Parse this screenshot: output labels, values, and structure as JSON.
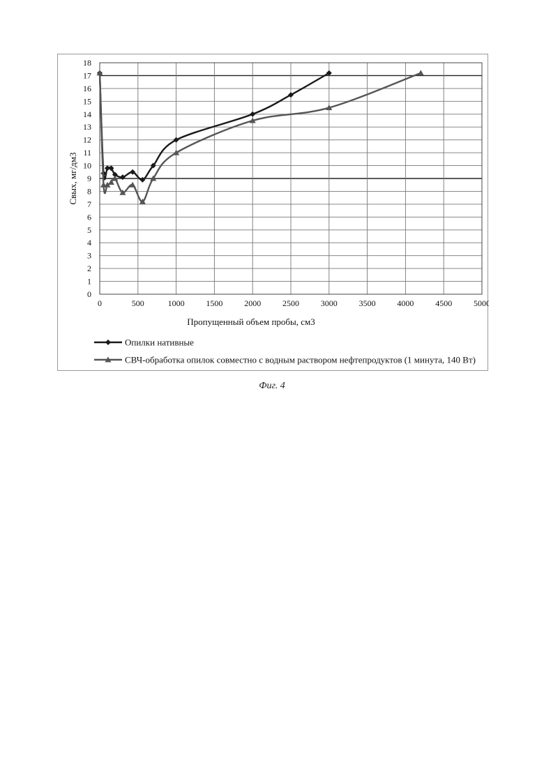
{
  "caption": "Фиг. 4",
  "chart_data": {
    "type": "line",
    "xlabel": "Пропущенный объем пробы, см3",
    "ylabel": "Свых, мг/дм3",
    "xlim": [
      0,
      5000
    ],
    "ylim": [
      0,
      18
    ],
    "x_ticks": [
      0,
      500,
      1000,
      1500,
      2000,
      2500,
      3000,
      3500,
      4000,
      4500,
      5000
    ],
    "y_ticks": [
      0,
      1,
      2,
      3,
      4,
      5,
      6,
      7,
      8,
      9,
      10,
      11,
      12,
      13,
      14,
      15,
      16,
      17,
      18
    ],
    "grid": true,
    "legend_position": "bottom",
    "series": [
      {
        "name": "Опилки нативные",
        "marker": "diamond",
        "color": "#1a1a1a",
        "x": [
          0,
          50,
          100,
          150,
          200,
          300,
          430,
          560,
          700,
          1000,
          2000,
          2500,
          3000
        ],
        "y": [
          17.2,
          9.4,
          9.8,
          9.8,
          9.3,
          9.1,
          9.5,
          8.9,
          10.0,
          12.0,
          14.0,
          15.5,
          17.2
        ]
      },
      {
        "name": "СВЧ-обработка опилок совместно с водным раствором нефтепродуктов (1 минута, 140 Вт)",
        "marker": "triangle",
        "color": "#555555",
        "x": [
          0,
          50,
          100,
          150,
          200,
          300,
          430,
          560,
          700,
          1000,
          2000,
          3000,
          4200
        ],
        "y": [
          17.2,
          8.5,
          8.5,
          8.7,
          9.0,
          7.9,
          8.5,
          7.2,
          9.0,
          11.0,
          13.5,
          14.5,
          17.2
        ]
      }
    ]
  }
}
